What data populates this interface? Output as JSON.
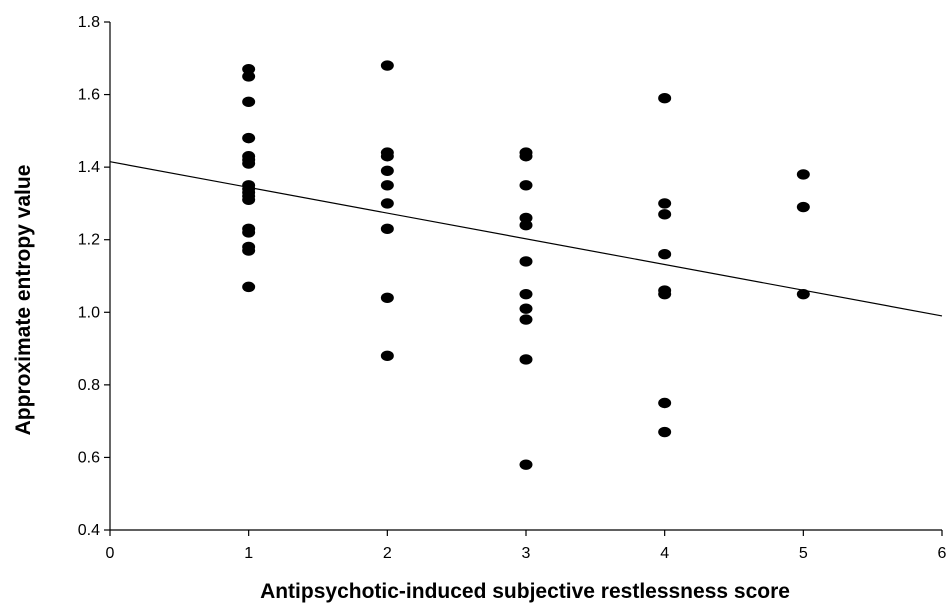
{
  "chart_data": {
    "type": "scatter",
    "title": "",
    "xlabel": "Antipsychotic-induced subjective restlessness score",
    "ylabel": "Approximate entropy value",
    "xlim": [
      0,
      6
    ],
    "ylim": [
      0.4,
      1.8
    ],
    "xticks": [
      0,
      1,
      2,
      3,
      4,
      5,
      6
    ],
    "yticks": [
      "0.4",
      "0.6",
      "0.8",
      "1.0",
      "1.2",
      "1.4",
      "1.6",
      "1.8"
    ],
    "grid": false,
    "legend": "none",
    "marker_color": "#000000",
    "points": [
      [
        1,
        1.67
      ],
      [
        1,
        1.65
      ],
      [
        1,
        1.58
      ],
      [
        1,
        1.48
      ],
      [
        1,
        1.43
      ],
      [
        1,
        1.42
      ],
      [
        1,
        1.41
      ],
      [
        1,
        1.35
      ],
      [
        1,
        1.34
      ],
      [
        1,
        1.33
      ],
      [
        1,
        1.32
      ],
      [
        1,
        1.31
      ],
      [
        1,
        1.23
      ],
      [
        1,
        1.22
      ],
      [
        1,
        1.18
      ],
      [
        1,
        1.17
      ],
      [
        1,
        1.07
      ],
      [
        2,
        1.68
      ],
      [
        2,
        1.44
      ],
      [
        2,
        1.43
      ],
      [
        2,
        1.39
      ],
      [
        2,
        1.35
      ],
      [
        2,
        1.3
      ],
      [
        2,
        1.23
      ],
      [
        2,
        1.04
      ],
      [
        2,
        0.88
      ],
      [
        3,
        1.44
      ],
      [
        3,
        1.43
      ],
      [
        3,
        1.35
      ],
      [
        3,
        1.26
      ],
      [
        3,
        1.24
      ],
      [
        3,
        1.14
      ],
      [
        3,
        1.05
      ],
      [
        3,
        1.01
      ],
      [
        3,
        0.98
      ],
      [
        3,
        0.87
      ],
      [
        3,
        0.58
      ],
      [
        4,
        1.59
      ],
      [
        4,
        1.3
      ],
      [
        4,
        1.27
      ],
      [
        4,
        1.16
      ],
      [
        4,
        1.06
      ],
      [
        4,
        1.05
      ],
      [
        4,
        0.75
      ],
      [
        4,
        0.67
      ],
      [
        5,
        1.38
      ],
      [
        5,
        1.29
      ],
      [
        5,
        1.05
      ]
    ],
    "trendline": {
      "x": [
        0,
        6
      ],
      "y": [
        1.415,
        0.99
      ]
    }
  }
}
